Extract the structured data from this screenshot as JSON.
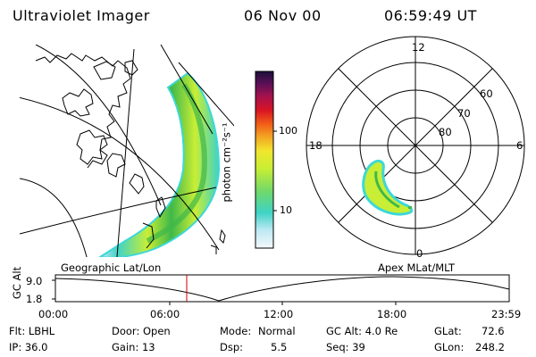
{
  "header": {
    "title": "Ultraviolet Imager",
    "date": "06 Nov 00",
    "time": "06:59:49 UT"
  },
  "colors": {
    "scale": [
      "#f4f8fb",
      "#bfe9f4",
      "#3fd3c6",
      "#6fd86a",
      "#c8ee35",
      "#f2e62e",
      "#f3a423",
      "#f26018",
      "#d81424",
      "#a4124e",
      "#5b1058",
      "#1b0f38"
    ],
    "aurora_edge": "#3cd8d8",
    "aurora_mid": "#c8ee35",
    "aurora_core": "#3fb84a",
    "marker": "#cc0000"
  },
  "colorbar": {
    "unit_label": "photon cm⁻²s⁻¹",
    "ticks": [
      "100",
      "10"
    ]
  },
  "geo_map": {
    "label": "Geographic Lat/Lon"
  },
  "polar_plot": {
    "label": "Apex MLat/MLT",
    "mlt_labels": {
      "top": "12",
      "left": "18",
      "right": "6",
      "bottom": "0"
    },
    "lat_labels": [
      "60",
      "70",
      "80"
    ]
  },
  "altitude_plot": {
    "axis_label": "GC Alt",
    "y_ticks": [
      "9.0",
      "1.8"
    ],
    "x_ticks": [
      "00:00",
      "06:00",
      "12:00",
      "18:00",
      "23:59"
    ]
  },
  "info": {
    "filter": "Flt: LBHL",
    "ip": "IP: 36.0",
    "door": "Door: Open",
    "gain": "Gain: 13",
    "mode_label": "Mode:",
    "mode_value": "Normal",
    "dsp_label": "Dsp:",
    "dsp_value": "5.5",
    "gc_alt": "GC Alt: 4.0 Re",
    "seq": "Seq: 39",
    "glat_label": "GLat:",
    "glat_value": "72.6",
    "glon_label": "GLon:",
    "glon_value": "248.2"
  }
}
